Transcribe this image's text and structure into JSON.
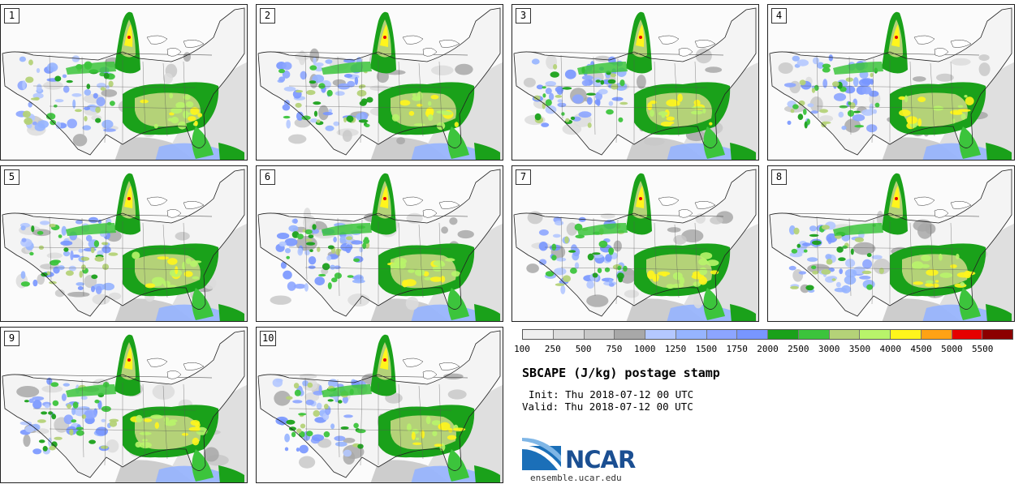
{
  "panels": [
    {
      "label": "1"
    },
    {
      "label": "2"
    },
    {
      "label": "3"
    },
    {
      "label": "4"
    },
    {
      "label": "5"
    },
    {
      "label": "6"
    },
    {
      "label": "7"
    },
    {
      "label": "8"
    },
    {
      "label": "9"
    },
    {
      "label": "10"
    }
  ],
  "legend": {
    "colors": [
      "#efefef",
      "#dcdcdc",
      "#c8c8c8",
      "#a8a8a8",
      "#b4c8ff",
      "#96b4ff",
      "#8ca5ff",
      "#7896ff",
      "#1aa11a",
      "#3cc43c",
      "#b4d278",
      "#b8f46a",
      "#fff51c",
      "#ffa214",
      "#e60000",
      "#8c0000"
    ],
    "ticks": [
      "100",
      "250",
      "500",
      "750",
      "1000",
      "1250",
      "1500",
      "1750",
      "2000",
      "2500",
      "3000",
      "3500",
      "4000",
      "4500",
      "5000",
      "5500"
    ]
  },
  "title": "SBCAPE (J/kg) postage stamp",
  "init": "Init: Thu 2018-07-12 00 UTC",
  "valid": "Valid: Thu 2018-07-12 00 UTC",
  "logo": {
    "wordmark": "NCAR",
    "url": "ensemble.ucar.edu"
  }
}
